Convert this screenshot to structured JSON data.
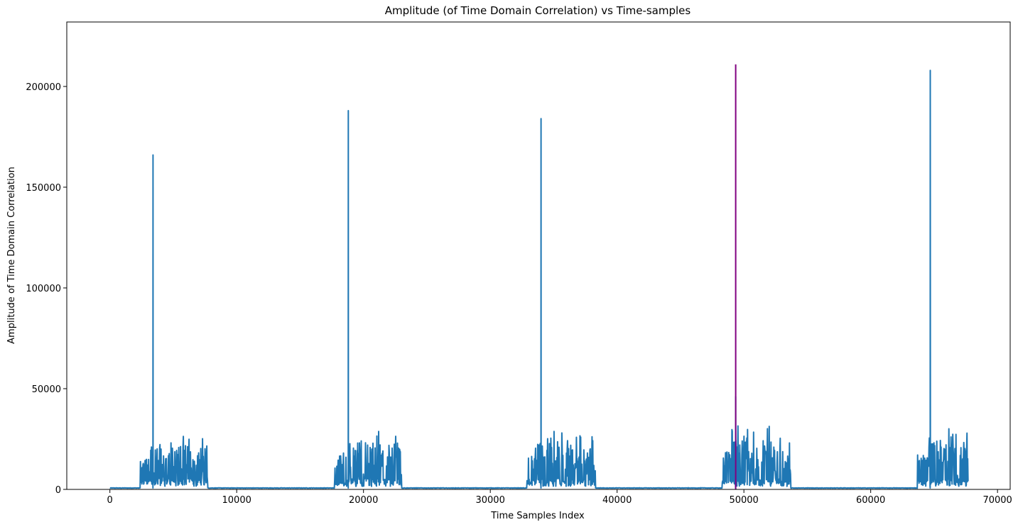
{
  "chart_data": {
    "type": "line",
    "title": "Amplitude (of Time Domain Correlation) vs Time-samples",
    "xlabel": "Time Samples Index",
    "ylabel": "Amplitude of Time Domain Correlation",
    "xlim": [
      -3400,
      71000
    ],
    "ylim": [
      0,
      232000
    ],
    "xticks": [
      0,
      10000,
      20000,
      30000,
      40000,
      50000,
      60000,
      70000
    ],
    "yticks": [
      0,
      50000,
      100000,
      150000,
      200000
    ],
    "grid": false,
    "legend": "none",
    "x_range": [
      0,
      67700
    ],
    "noise_floor": 700,
    "series": [
      {
        "color": "#1f77b4",
        "bursts": [
          {
            "start": 2400,
            "end": 7700,
            "level": 15000,
            "max": 28000,
            "peak_x": 3400,
            "peak_y": 166000
          },
          {
            "start": 17700,
            "end": 23000,
            "level": 17000,
            "max": 31000,
            "peak_x": 18800,
            "peak_y": 188000
          },
          {
            "start": 32900,
            "end": 38300,
            "level": 16500,
            "max": 31000,
            "peak_x": 34000,
            "peak_y": 184000
          },
          {
            "start": 48300,
            "end": 53700,
            "level": 19000,
            "max": 35000,
            "peak_x": 49350,
            "peak_y": 46000
          },
          {
            "start": 63700,
            "end": 67700,
            "level": 18500,
            "max": 34500,
            "peak_x": 64700,
            "peak_y": 208000
          }
        ]
      },
      {
        "color": "#800080",
        "points": [
          {
            "x": 49350,
            "y": 0
          },
          {
            "x": 49350,
            "y": 211000
          }
        ]
      }
    ]
  }
}
